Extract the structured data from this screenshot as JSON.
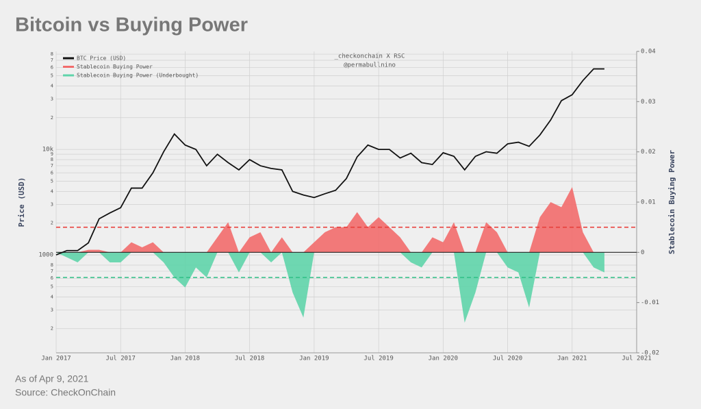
{
  "title": "Bitcoin vs Buying Power",
  "footer": {
    "date": "As of Apr 9, 2021",
    "source": "Source: CheckOnChain"
  },
  "chart_data": {
    "type": "line",
    "annotations": [
      "_checkonchain X RSC",
      "@permabullnino"
    ],
    "ylabel": "Price (USD)",
    "y2label": "Stablecoin Buying Power",
    "log_scale": true,
    "grid": true,
    "legend": "upper left",
    "xlim": [
      "2017-01",
      "2021-07"
    ],
    "xticks": [
      {
        "value": "2017-01",
        "label": "Jan 2017"
      },
      {
        "value": "2017-07",
        "label": "Jul 2017"
      },
      {
        "value": "2018-01",
        "label": "Jan 2018"
      },
      {
        "value": "2018-07",
        "label": "Jul 2018"
      },
      {
        "value": "2019-01",
        "label": "Jan 2019"
      },
      {
        "value": "2019-07",
        "label": "Jul 2019"
      },
      {
        "value": "2020-01",
        "label": "Jan 2020"
      },
      {
        "value": "2020-07",
        "label": "Jul 2020"
      },
      {
        "value": "2021-01",
        "label": "Jan 2021"
      },
      {
        "value": "2021-07",
        "label": "Jul 2021"
      }
    ],
    "ylim": [
      118,
      85000
    ],
    "yticks": [
      {
        "value": 200,
        "label": "2"
      },
      {
        "value": 300,
        "label": "3"
      },
      {
        "value": 400,
        "label": "4"
      },
      {
        "value": 500,
        "label": "5"
      },
      {
        "value": 600,
        "label": "6"
      },
      {
        "value": 700,
        "label": "7"
      },
      {
        "value": 800,
        "label": "8"
      },
      1000,
      {
        "value": 2000,
        "label": "2"
      },
      {
        "value": 3000,
        "label": "3"
      },
      {
        "value": 4000,
        "label": "4"
      },
      {
        "value": 5000,
        "label": "5"
      },
      {
        "value": 6000,
        "label": "6"
      },
      {
        "value": 7000,
        "label": "7"
      },
      {
        "value": 8000,
        "label": "8"
      },
      {
        "value": 9000,
        "label": "9"
      },
      {
        "value": 10000,
        "label": "10k"
      },
      {
        "value": 20000,
        "label": "2"
      },
      {
        "value": 30000,
        "label": "3"
      },
      {
        "value": 40000,
        "label": "4"
      },
      {
        "value": 50000,
        "label": "5"
      },
      {
        "value": 60000,
        "label": "6"
      },
      {
        "value": 70000,
        "label": "7"
      },
      {
        "value": 80000,
        "label": "8"
      }
    ],
    "y2lim": [
      -0.02,
      0.04
    ],
    "y2ticks": [
      -0.02,
      -0.01,
      0,
      0.01,
      0.02,
      0.03,
      0.04
    ],
    "reference_lines": [
      {
        "axis": "y2",
        "value": 0.005,
        "color": "#e8403c"
      },
      {
        "axis": "y2",
        "value": -0.005,
        "color": "#2fbf86"
      }
    ],
    "x": [
      "2017-01",
      "2017-02",
      "2017-03",
      "2017-04",
      "2017-05",
      "2017-06",
      "2017-07",
      "2017-08",
      "2017-09",
      "2017-10",
      "2017-11",
      "2017-12",
      "2018-01",
      "2018-02",
      "2018-03",
      "2018-04",
      "2018-05",
      "2018-06",
      "2018-07",
      "2018-08",
      "2018-09",
      "2018-10",
      "2018-11",
      "2018-12",
      "2019-01",
      "2019-02",
      "2019-03",
      "2019-04",
      "2019-05",
      "2019-06",
      "2019-07",
      "2019-08",
      "2019-09",
      "2019-10",
      "2019-11",
      "2019-12",
      "2020-01",
      "2020-02",
      "2020-03",
      "2020-04",
      "2020-05",
      "2020-06",
      "2020-07",
      "2020-08",
      "2020-09",
      "2020-10",
      "2020-11",
      "2020-12",
      "2021-01",
      "2021-02",
      "2021-03",
      "2021-04"
    ],
    "series": [
      {
        "name": "BTC Price (USD)",
        "color": "#111111",
        "values": [
          1000,
          1100,
          1100,
          1300,
          2200,
          2500,
          2800,
          4300,
          4300,
          6000,
          9500,
          14000,
          11000,
          10000,
          7000,
          9000,
          7500,
          6400,
          8000,
          7000,
          6600,
          6400,
          4000,
          3700,
          3500,
          3800,
          4100,
          5300,
          8500,
          11000,
          10000,
          10000,
          8300,
          9200,
          7500,
          7200,
          9300,
          8600,
          6400,
          8600,
          9500,
          9200,
          11300,
          11700,
          10700,
          13700,
          19000,
          29000,
          33000,
          45000,
          58000,
          58000
        ]
      },
      {
        "name": "Stablecoin Buying Power",
        "color": "#f26b6b",
        "axis": "y2",
        "type": "area",
        "values": [
          0,
          0,
          0,
          0.0005,
          0.0005,
          0,
          0,
          0.002,
          0.001,
          0.002,
          0,
          0,
          0,
          0,
          0,
          0.003,
          0.006,
          0,
          0.003,
          0.004,
          0,
          0.003,
          0,
          0,
          0.002,
          0.004,
          0.005,
          0.005,
          0.008,
          0.005,
          0.007,
          0.005,
          0.003,
          0,
          0,
          0.003,
          0.002,
          0.006,
          0,
          0,
          0.006,
          0.004,
          0,
          0,
          0,
          0.007,
          0.01,
          0.009,
          0.013,
          0.004,
          0,
          0
        ]
      },
      {
        "name": "Stablecoin Buying Power (Underbought)",
        "color": "#5fd4aa",
        "axis": "y2",
        "type": "area",
        "values": [
          0,
          -0.001,
          -0.002,
          0,
          0,
          -0.002,
          -0.002,
          0,
          0,
          0,
          -0.002,
          -0.005,
          -0.007,
          -0.003,
          -0.005,
          0,
          0,
          -0.004,
          0,
          0,
          -0.002,
          0,
          -0.008,
          -0.013,
          0,
          0,
          0,
          0,
          0,
          0,
          0,
          0,
          0,
          -0.002,
          -0.003,
          0,
          0,
          0,
          -0.014,
          -0.008,
          0,
          0,
          -0.003,
          -0.004,
          -0.011,
          0,
          0,
          0,
          0,
          0,
          -0.003,
          -0.004
        ]
      }
    ]
  }
}
